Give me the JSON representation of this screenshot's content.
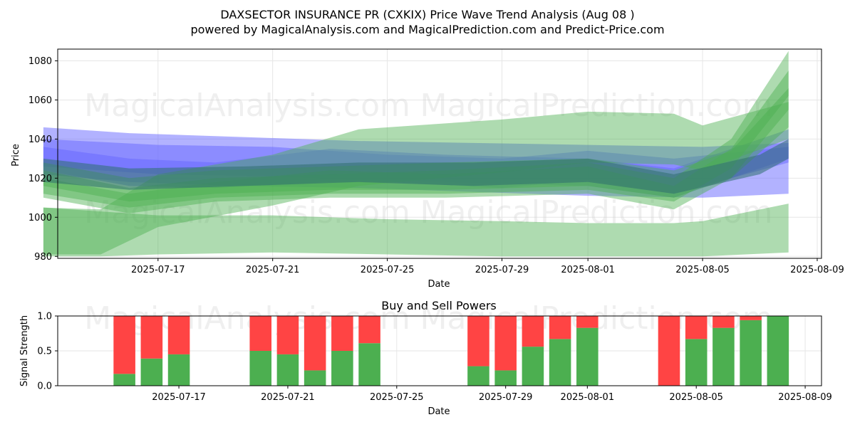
{
  "header": {
    "title": "DAXSECTOR INSURANCE PR (CXKIX) Price Wave Trend Analysis (Aug 08 )",
    "subtitle": "powered by MagicalAnalysis.com and MagicalPrediction.com and Predict-Price.com"
  },
  "watermarks": [
    "MagicalAnalysis.com",
    "MagicalPrediction.com"
  ],
  "colors": {
    "buy": "#4caf50",
    "sell": "#ff4444",
    "band_blue": "#6666ff",
    "band_green": "#4caf50",
    "band_dark": "#2f6f6f"
  },
  "chart_data": [
    {
      "type": "area",
      "title": "",
      "xlabel": "Date",
      "ylabel": "Price",
      "x_range": [
        "2025-07-13",
        "2025-08-09"
      ],
      "ylim": [
        979,
        1086
      ],
      "yticks": [
        980,
        1000,
        1020,
        1040,
        1060,
        1080
      ],
      "xticks": [
        "2025-07-17",
        "2025-07-21",
        "2025-07-25",
        "2025-07-29",
        "2025-08-01",
        "2025-08-05",
        "2025-08-09"
      ],
      "grid": true,
      "series": [
        {
          "color": "blue",
          "x": [
            "2025-07-13",
            "2025-07-16",
            "2025-07-20",
            "2025-07-24",
            "2025-07-28",
            "2025-08-01",
            "2025-08-05",
            "2025-08-08"
          ],
          "upper": [
            1046,
            1043,
            1041,
            1039,
            1038,
            1037,
            1036,
            1038
          ],
          "lower": [
            1022,
            1018,
            1016,
            1015,
            1013,
            1011,
            1010,
            1012
          ]
        },
        {
          "color": "blue",
          "x": [
            "2025-07-13",
            "2025-07-17",
            "2025-07-21",
            "2025-07-25",
            "2025-07-29",
            "2025-08-01",
            "2025-08-04",
            "2025-08-08"
          ],
          "upper": [
            1040,
            1037,
            1036,
            1032,
            1030,
            1034,
            1030,
            1036
          ],
          "lower": [
            1026,
            1022,
            1021,
            1018,
            1015,
            1019,
            1012,
            1028
          ]
        },
        {
          "color": "blue",
          "x": [
            "2025-07-13",
            "2025-07-16",
            "2025-07-19",
            "2025-07-23",
            "2025-07-27",
            "2025-08-01",
            "2025-08-04",
            "2025-08-08"
          ],
          "upper": [
            1036,
            1030,
            1028,
            1035,
            1032,
            1030,
            1025,
            1045
          ],
          "lower": [
            1024,
            1016,
            1015,
            1018,
            1018,
            1016,
            1010,
            1030
          ]
        },
        {
          "color": "green",
          "x": [
            "2025-07-13",
            "2025-07-15",
            "2025-07-17",
            "2025-07-21",
            "2025-07-25",
            "2025-07-29",
            "2025-08-01",
            "2025-08-04",
            "2025-08-05",
            "2025-08-08"
          ],
          "upper": [
            1005,
            1003,
            1001,
            1001,
            999,
            998,
            997,
            997,
            998,
            1007
          ],
          "lower": [
            980,
            980,
            981,
            982,
            981,
            980,
            980,
            980,
            980,
            982
          ]
        },
        {
          "color": "green",
          "x": [
            "2025-07-13",
            "2025-07-15",
            "2025-07-17",
            "2025-07-21",
            "2025-07-24",
            "2025-07-29",
            "2025-08-01",
            "2025-08-04",
            "2025-08-05",
            "2025-08-08"
          ],
          "upper": [
            1005,
            1004,
            1022,
            1032,
            1045,
            1050,
            1054,
            1053,
            1047,
            1059
          ],
          "lower": [
            981,
            981,
            995,
            1006,
            1016,
            1023,
            1028,
            1027,
            1024,
            1040
          ]
        },
        {
          "color": "green",
          "x": [
            "2025-07-13",
            "2025-07-16",
            "2025-07-19",
            "2025-07-23",
            "2025-07-27",
            "2025-08-01",
            "2025-08-04",
            "2025-08-06",
            "2025-08-08"
          ],
          "upper": [
            1024,
            1015,
            1020,
            1022,
            1024,
            1028,
            1020,
            1040,
            1085
          ],
          "lower": [
            1012,
            1005,
            1010,
            1012,
            1012,
            1014,
            1008,
            1025,
            1062
          ]
        },
        {
          "color": "green",
          "x": [
            "2025-07-13",
            "2025-07-16",
            "2025-07-19",
            "2025-07-23",
            "2025-07-27",
            "2025-08-01",
            "2025-08-04",
            "2025-08-06",
            "2025-08-08"
          ],
          "upper": [
            1020,
            1012,
            1018,
            1024,
            1022,
            1026,
            1016,
            1035,
            1075
          ],
          "lower": [
            1010,
            1002,
            1008,
            1010,
            1010,
            1012,
            1004,
            1020,
            1055
          ]
        },
        {
          "color": "green",
          "x": [
            "2025-07-13",
            "2025-07-16",
            "2025-07-19",
            "2025-07-23",
            "2025-07-27",
            "2025-08-01",
            "2025-08-04",
            "2025-08-06",
            "2025-08-08"
          ],
          "upper": [
            1028,
            1020,
            1024,
            1026,
            1028,
            1030,
            1024,
            1034,
            1066
          ],
          "lower": [
            1016,
            1008,
            1012,
            1014,
            1014,
            1016,
            1010,
            1020,
            1046
          ]
        },
        {
          "color": "dark",
          "x": [
            "2025-07-13",
            "2025-07-16",
            "2025-07-20",
            "2025-07-24",
            "2025-07-28",
            "2025-08-01",
            "2025-08-04",
            "2025-08-07",
            "2025-08-08"
          ],
          "upper": [
            1030,
            1025,
            1026,
            1028,
            1028,
            1030,
            1022,
            1032,
            1040
          ],
          "lower": [
            1018,
            1014,
            1016,
            1018,
            1016,
            1018,
            1012,
            1022,
            1030
          ]
        }
      ]
    },
    {
      "type": "bar",
      "title": "Buy and Sell Powers",
      "xlabel": "Date",
      "ylabel": "Signal Strength",
      "ylim": [
        0,
        1
      ],
      "yticks": [
        "0.0",
        "0.5",
        "1.0"
      ],
      "xticks": [
        "2025-07-17",
        "2025-07-21",
        "2025-07-25",
        "2025-07-29",
        "2025-08-01",
        "2025-08-05",
        "2025-08-09"
      ],
      "grid": true,
      "categories": [
        "2025-07-15",
        "2025-07-16",
        "2025-07-17",
        "2025-07-20",
        "2025-07-21",
        "2025-07-22",
        "2025-07-23",
        "2025-07-24",
        "2025-07-28",
        "2025-07-29",
        "2025-07-30",
        "2025-07-31",
        "2025-08-01",
        "2025-08-04",
        "2025-08-05",
        "2025-08-06",
        "2025-08-07",
        "2025-08-08"
      ],
      "series": [
        {
          "name": "buy",
          "values": [
            0.17,
            0.39,
            0.45,
            0.5,
            0.45,
            0.22,
            0.5,
            0.61,
            0.28,
            0.22,
            0.56,
            0.67,
            0.83,
            0.0,
            0.67,
            0.83,
            0.94,
            1.0
          ]
        },
        {
          "name": "sell",
          "values": [
            0.83,
            0.61,
            0.55,
            0.5,
            0.55,
            0.78,
            0.5,
            0.39,
            0.72,
            0.78,
            0.44,
            0.33,
            0.17,
            1.0,
            0.33,
            0.17,
            0.06,
            0.0
          ]
        }
      ]
    }
  ]
}
